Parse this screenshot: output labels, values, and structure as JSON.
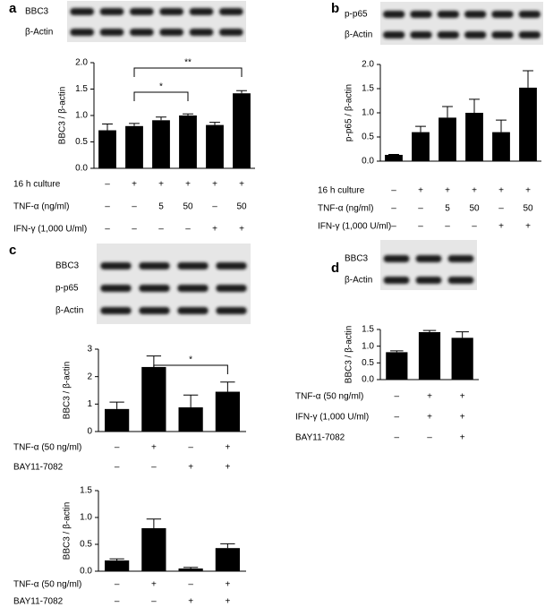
{
  "chart_data": [
    {
      "type": "bar",
      "panel_label": "a",
      "blot_labels": [
        "BBC3",
        "β-Actin"
      ],
      "ylabel": "BBC3 / β-actin",
      "color": "#000000",
      "values": [
        0.72,
        0.8,
        0.91,
        1.0,
        0.82,
        1.42
      ],
      "errors": [
        0.12,
        0.05,
        0.06,
        0.03,
        0.05,
        0.05
      ],
      "ylim": [
        0,
        2.0
      ],
      "yticks": [
        {
          "value": 0,
          "label": "0.0"
        },
        {
          "value": 0.5,
          "label": "0.5"
        },
        {
          "value": 1,
          "label": "1.0"
        },
        {
          "value": 1.5,
          "label": "1.5"
        },
        {
          "value": 2,
          "label": "2.0"
        }
      ],
      "conditions": [
        {
          "label": "16 h culture",
          "marks": [
            "–",
            "+",
            "+",
            "+",
            "+",
            "+"
          ]
        },
        {
          "label": "TNF-α (ng/ml)",
          "marks": [
            "–",
            "–",
            "5",
            "50",
            "–",
            "50"
          ]
        },
        {
          "label": "IFN-γ (1,000 U/ml)",
          "marks": [
            "–",
            "–",
            "–",
            "–",
            "+",
            "+"
          ]
        }
      ],
      "significance": [
        "*",
        "**"
      ]
    },
    {
      "type": "bar",
      "panel_label": "b",
      "blot_labels": [
        "p-p65",
        "β-Actin"
      ],
      "ylabel": "p-p65 / β-actin",
      "color": "#000000",
      "values": [
        0.13,
        0.6,
        0.9,
        1.0,
        0.6,
        1.52
      ],
      "errors": [
        0.01,
        0.12,
        0.23,
        0.28,
        0.25,
        0.35
      ],
      "ylim": [
        0,
        2.0
      ],
      "yticks": [
        {
          "value": 0,
          "label": "0.0"
        },
        {
          "value": 0.5,
          "label": "0.5"
        },
        {
          "value": 1,
          "label": "1.0"
        },
        {
          "value": 1.5,
          "label": "1.5"
        },
        {
          "value": 2,
          "label": "2.0"
        }
      ],
      "conditions": [
        {
          "label": "16 h culture",
          "marks": [
            "–",
            "+",
            "+",
            "+",
            "+",
            "+"
          ]
        },
        {
          "label": "TNF-α (ng/ml)",
          "marks": [
            "–",
            "–",
            "5",
            "50",
            "–",
            "50"
          ]
        },
        {
          "label": "IFN-γ (1,000 U/ml)",
          "marks": [
            "–",
            "–",
            "–",
            "–",
            "+",
            "+"
          ]
        }
      ]
    },
    {
      "type": "bar",
      "panel_label": "c",
      "blot_labels": [
        "BBC3",
        "p-p65",
        "β-Actin"
      ],
      "ylabel": "BBC3 / β-actin",
      "color": "#000000",
      "values": [
        0.82,
        2.35,
        0.88,
        1.45
      ],
      "errors": [
        0.25,
        0.4,
        0.45,
        0.35
      ],
      "ylim": [
        0,
        3
      ],
      "yticks": [
        0,
        1,
        2,
        3
      ],
      "conditions": [
        {
          "label": "TNF-α (50 ng/ml)",
          "marks": [
            "–",
            "+",
            "–",
            "+"
          ]
        },
        {
          "label": "BAY11-7082",
          "marks": [
            "–",
            "–",
            "+",
            "+"
          ]
        }
      ],
      "significance": [
        "*"
      ]
    },
    {
      "type": "bar",
      "ylabel": "BBC3 / β-actin",
      "color": "#000000",
      "values": [
        0.2,
        0.8,
        0.05,
        0.43
      ],
      "errors": [
        0.03,
        0.17,
        0.02,
        0.08
      ],
      "ylim": [
        0,
        1.5
      ],
      "yticks": [
        {
          "value": 0,
          "label": "0.0"
        },
        {
          "value": 0.5,
          "label": "0.5"
        },
        {
          "value": 1,
          "label": "1.0"
        },
        {
          "value": 1.5,
          "label": "1.5"
        }
      ],
      "conditions": [
        {
          "label": "TNF-α (50 ng/ml)",
          "marks": [
            "–",
            "+",
            "–",
            "+"
          ]
        },
        {
          "label": "BAY11-7082",
          "marks": [
            "–",
            "–",
            "+",
            "+"
          ]
        }
      ]
    },
    {
      "type": "bar",
      "panel_label": "d",
      "blot_labels": [
        "BBC3",
        "β-Actin"
      ],
      "ylabel": "BBC3 / β-actin",
      "color": "#000000",
      "values": [
        0.82,
        1.42,
        1.25
      ],
      "errors": [
        0.04,
        0.05,
        0.18
      ],
      "ylim": [
        0,
        1.5
      ],
      "yticks": [
        {
          "value": 0,
          "label": "0.0"
        },
        {
          "value": 0.5,
          "label": "0.5"
        },
        {
          "value": 1,
          "label": "1.0"
        },
        {
          "value": 1.5,
          "label": "1.5"
        }
      ],
      "conditions": [
        {
          "label": "TNF-α (50 ng/ml)",
          "marks": [
            "–",
            "+",
            "+"
          ]
        },
        {
          "label": "IFN-γ (1,000 U/ml)",
          "marks": [
            "–",
            "+",
            "+"
          ]
        },
        {
          "label": "BAY11-7082",
          "marks": [
            "–",
            "–",
            "+"
          ]
        }
      ]
    }
  ]
}
